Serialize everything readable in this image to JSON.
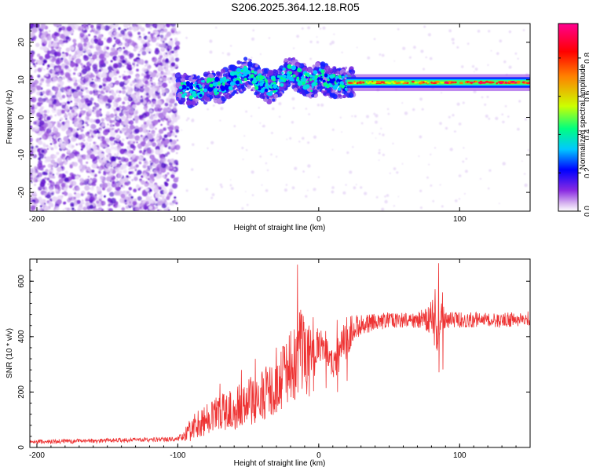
{
  "title": "S206.2025.364.12.18.R05",
  "chart_data": [
    {
      "type": "heatmap",
      "xlabel": "Height of straight line (km)",
      "ylabel": "Frequency (Hz)",
      "xlim": [
        -205,
        150
      ],
      "ylim": [
        -25,
        25
      ],
      "xticks": [
        -200,
        -100,
        0,
        100
      ],
      "yticks": [
        -20,
        -10,
        0,
        10,
        20
      ],
      "ridge": {
        "x": [
          -100,
          -95,
          -90,
          -85,
          -80,
          -75,
          -70,
          -65,
          -60,
          -55,
          -50,
          -45,
          -40,
          -35,
          -30,
          -25,
          -20,
          -15,
          -10,
          -5,
          0,
          5,
          10,
          15,
          20,
          40,
          60,
          80,
          100,
          120,
          150
        ],
        "y": [
          8,
          7.5,
          7,
          7.5,
          8,
          8.5,
          8,
          9,
          10,
          11,
          12,
          10,
          9,
          8,
          9,
          11,
          12,
          11,
          10,
          9,
          11,
          10,
          9.5,
          9.3,
          9.3,
          9.3,
          9.3,
          9.3,
          9.3,
          9.3,
          9.3
        ]
      },
      "colorbar": {
        "label": "Normalized spectral amplitude",
        "min": 0.0,
        "max": 0.98,
        "ticks": [
          0.0,
          0.2,
          0.4,
          0.6,
          0.8
        ],
        "tick_labels": [
          "0.0",
          "0.2",
          "0.4",
          "0.6",
          "0.8"
        ],
        "colors": [
          "#ffffff",
          "#d9b8f0",
          "#8a2be2",
          "#0000ff",
          "#00c8ff",
          "#00ff80",
          "#ccff00",
          "#ff8000",
          "#ff0000",
          "#ff0090"
        ]
      }
    },
    {
      "type": "line",
      "xlabel": "Height of straight line (km)",
      "ylabel": "SNR (10 * v/v)",
      "xlim": [
        -205,
        150
      ],
      "ylim": [
        0,
        680
      ],
      "xticks": [
        -200,
        -100,
        0,
        100
      ],
      "yticks": [
        0,
        200,
        400,
        600
      ],
      "color": "#ee3333",
      "series": [
        {
          "name": "SNR",
          "x": [
            -205,
            -180,
            -150,
            -120,
            -100,
            -95,
            -90,
            -80,
            -70,
            -60,
            -50,
            -40,
            -30,
            -25,
            -20,
            -15,
            -12,
            -10,
            -8,
            -5,
            -2,
            0,
            5,
            10,
            15,
            18,
            20,
            25,
            30,
            40,
            50,
            60,
            70,
            75,
            80,
            83,
            85,
            88,
            90,
            100,
            110,
            120,
            135,
            150
          ],
          "y": [
            20,
            22,
            25,
            28,
            30,
            45,
            70,
            100,
            130,
            140,
            160,
            190,
            210,
            260,
            300,
            330,
            350,
            370,
            290,
            330,
            350,
            380,
            360,
            300,
            350,
            370,
            400,
            430,
            440,
            450,
            460,
            460,
            460,
            465,
            470,
            460,
            450,
            470,
            460,
            460,
            460,
            460,
            460,
            465
          ],
          "band": [
            0,
            0,
            0,
            0,
            0,
            15,
            40,
            50,
            60,
            70,
            80,
            90,
            90,
            120,
            130,
            150,
            150,
            120,
            160,
            110,
            70,
            60,
            40,
            60,
            70,
            70,
            70,
            40,
            30,
            25,
            20,
            20,
            20,
            30,
            60,
            120,
            80,
            40,
            25,
            20,
            20,
            20,
            20,
            20
          ],
          "spikes": [
            [
              -70,
              230
            ],
            [
              -55,
              280
            ],
            [
              -45,
              320
            ],
            [
              -30,
              360
            ],
            [
              -20,
              420
            ],
            [
              -15,
              660
            ],
            [
              -12,
              480
            ],
            [
              -7,
              440
            ],
            [
              -4,
              470
            ],
            [
              5,
              420
            ],
            [
              13,
              460
            ],
            [
              20,
              470
            ],
            [
              85,
              665
            ],
            [
              88,
              560
            ]
          ]
        }
      ]
    }
  ]
}
